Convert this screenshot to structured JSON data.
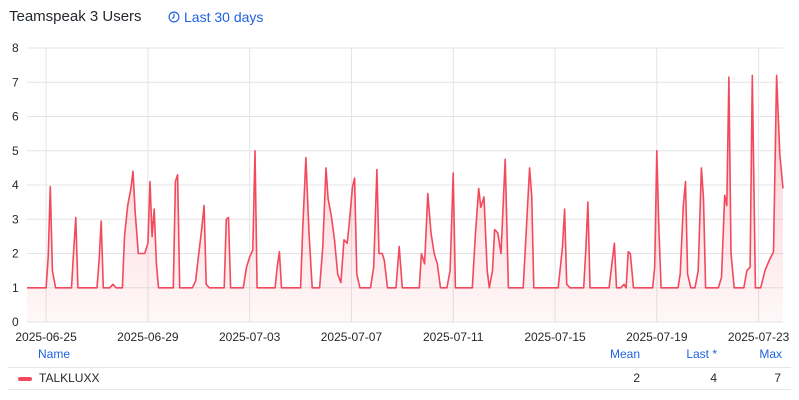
{
  "panel": {
    "title": "Teamspeak 3 Users",
    "time_range": "Last 30 days",
    "time_range_icon": "clock-icon"
  },
  "legend": {
    "headers": {
      "name": "Name",
      "mean": "Mean",
      "last": "Last *",
      "max": "Max"
    },
    "rows": [
      {
        "name": "TALKLUXX",
        "mean": "2",
        "last": "4",
        "max": "7",
        "color": "#f2495c"
      }
    ]
  },
  "chart_data": {
    "type": "area",
    "x_ticks": [
      "2025-06-25",
      "2025-06-29",
      "2025-07-03",
      "2025-07-07",
      "2025-07-11",
      "2025-07-15",
      "2025-07-19",
      "2025-07-23"
    ],
    "x_start": "2025-06-24T06:00",
    "x_end": "2025-07-23T23:00",
    "y_ticks": [
      0,
      1,
      2,
      3,
      4,
      5,
      6,
      7,
      8
    ],
    "ylim": [
      0,
      8
    ],
    "grid": true,
    "series": [
      {
        "name": "TALKLUXX",
        "color": "#f2495c",
        "points": [
          [
            "2025-06-24T06:00",
            1
          ],
          [
            "2025-06-24T12:00",
            1
          ],
          [
            "2025-06-24T18:00",
            1
          ],
          [
            "2025-06-25T00:00",
            1
          ],
          [
            "2025-06-25T02:00",
            1.9
          ],
          [
            "2025-06-25T04:00",
            3.95
          ],
          [
            "2025-06-25T06:00",
            1.5
          ],
          [
            "2025-06-25T09:00",
            1
          ],
          [
            "2025-06-25T18:00",
            1
          ],
          [
            "2025-06-26T00:00",
            1
          ],
          [
            "2025-06-26T02:00",
            2.1
          ],
          [
            "2025-06-26T04:00",
            3.05
          ],
          [
            "2025-06-26T06:00",
            1
          ],
          [
            "2025-06-26T12:00",
            1
          ],
          [
            "2025-06-26T18:00",
            1
          ],
          [
            "2025-06-27T00:00",
            1
          ],
          [
            "2025-06-27T02:00",
            1.8
          ],
          [
            "2025-06-27T04:00",
            2.95
          ],
          [
            "2025-06-27T06:00",
            1
          ],
          [
            "2025-06-27T12:00",
            1
          ],
          [
            "2025-06-27T15:00",
            1.1
          ],
          [
            "2025-06-27T18:00",
            1
          ],
          [
            "2025-06-28T00:00",
            1
          ],
          [
            "2025-06-28T02:00",
            2.5
          ],
          [
            "2025-06-28T05:00",
            3.4
          ],
          [
            "2025-06-28T08:00",
            3.9
          ],
          [
            "2025-06-28T10:00",
            4.4
          ],
          [
            "2025-06-28T12:00",
            3.2
          ],
          [
            "2025-06-28T15:00",
            2
          ],
          [
            "2025-06-28T18:00",
            2
          ],
          [
            "2025-06-28T21:00",
            2
          ],
          [
            "2025-06-29T00:00",
            2.3
          ],
          [
            "2025-06-29T02:00",
            4.1
          ],
          [
            "2025-06-29T04:00",
            2.5
          ],
          [
            "2025-06-29T06:00",
            3.3
          ],
          [
            "2025-06-29T08:00",
            1.7
          ],
          [
            "2025-06-29T10:00",
            1
          ],
          [
            "2025-06-29T18:00",
            1
          ],
          [
            "2025-06-30T00:00",
            1
          ],
          [
            "2025-06-30T02:00",
            4.1
          ],
          [
            "2025-06-30T04:00",
            4.3
          ],
          [
            "2025-06-30T06:00",
            1
          ],
          [
            "2025-06-30T12:00",
            1
          ],
          [
            "2025-06-30T18:00",
            1
          ],
          [
            "2025-06-30T21:00",
            1.2
          ],
          [
            "2025-07-01T00:00",
            2
          ],
          [
            "2025-07-01T03:00",
            2.8
          ],
          [
            "2025-07-01T05:00",
            3.4
          ],
          [
            "2025-07-01T07:00",
            1.1
          ],
          [
            "2025-07-01T10:00",
            1
          ],
          [
            "2025-07-01T18:00",
            1
          ],
          [
            "2025-07-02T00:00",
            1
          ],
          [
            "2025-07-02T02:00",
            3
          ],
          [
            "2025-07-02T04:00",
            3.05
          ],
          [
            "2025-07-02T06:00",
            1
          ],
          [
            "2025-07-02T12:00",
            1
          ],
          [
            "2025-07-02T18:00",
            1
          ],
          [
            "2025-07-02T21:00",
            1.6
          ],
          [
            "2025-07-03T00:00",
            1.9
          ],
          [
            "2025-07-03T03:00",
            2.1
          ],
          [
            "2025-07-03T05:00",
            5
          ],
          [
            "2025-07-03T07:00",
            1
          ],
          [
            "2025-07-03T12:00",
            1
          ],
          [
            "2025-07-03T18:00",
            1
          ],
          [
            "2025-07-04T00:00",
            1
          ],
          [
            "2025-07-04T02:00",
            1.6
          ],
          [
            "2025-07-04T04:00",
            2.05
          ],
          [
            "2025-07-04T06:00",
            1
          ],
          [
            "2025-07-04T12:00",
            1
          ],
          [
            "2025-07-04T18:00",
            1
          ],
          [
            "2025-07-05T00:00",
            1
          ],
          [
            "2025-07-05T02:00",
            2.7
          ],
          [
            "2025-07-05T05:00",
            4.8
          ],
          [
            "2025-07-05T08:00",
            2.6
          ],
          [
            "2025-07-05T11:00",
            1
          ],
          [
            "2025-07-05T18:00",
            1
          ],
          [
            "2025-07-05T21:00",
            2.2
          ],
          [
            "2025-07-06T00:00",
            4.5
          ],
          [
            "2025-07-06T02:00",
            3.6
          ],
          [
            "2025-07-06T05:00",
            3.1
          ],
          [
            "2025-07-06T08:00",
            2.4
          ],
          [
            "2025-07-06T11:00",
            1.4
          ],
          [
            "2025-07-06T14:00",
            1.15
          ],
          [
            "2025-07-06T17:00",
            2.4
          ],
          [
            "2025-07-06T20:00",
            2.3
          ],
          [
            "2025-07-06T22:00",
            2.9
          ],
          [
            "2025-07-07T01:00",
            3.95
          ],
          [
            "2025-07-07T03:00",
            4.2
          ],
          [
            "2025-07-07T05:00",
            1.4
          ],
          [
            "2025-07-07T08:00",
            1
          ],
          [
            "2025-07-07T14:00",
            1
          ],
          [
            "2025-07-07T18:00",
            1
          ],
          [
            "2025-07-07T21:00",
            1.6
          ],
          [
            "2025-07-08T00:00",
            4.45
          ],
          [
            "2025-07-08T02:00",
            2
          ],
          [
            "2025-07-08T05:00",
            2
          ],
          [
            "2025-07-08T07:00",
            1.8
          ],
          [
            "2025-07-08T10:00",
            1
          ],
          [
            "2025-07-08T14:00",
            1
          ],
          [
            "2025-07-08T18:00",
            1
          ],
          [
            "2025-07-08T21:00",
            2.2
          ],
          [
            "2025-07-09T00:00",
            1
          ],
          [
            "2025-07-09T06:00",
            1
          ],
          [
            "2025-07-09T12:00",
            1
          ],
          [
            "2025-07-09T16:00",
            1
          ],
          [
            "2025-07-09T18:00",
            2
          ],
          [
            "2025-07-09T21:00",
            1.7
          ],
          [
            "2025-07-10T00:00",
            3.75
          ],
          [
            "2025-07-10T03:00",
            2.6
          ],
          [
            "2025-07-10T06:00",
            2
          ],
          [
            "2025-07-10T09:00",
            1.7
          ],
          [
            "2025-07-10T12:00",
            1
          ],
          [
            "2025-07-10T18:00",
            1
          ],
          [
            "2025-07-10T21:00",
            1.5
          ],
          [
            "2025-07-11T00:00",
            4.35
          ],
          [
            "2025-07-11T02:00",
            1
          ],
          [
            "2025-07-11T08:00",
            1
          ],
          [
            "2025-07-11T14:00",
            1
          ],
          [
            "2025-07-11T18:00",
            1
          ],
          [
            "2025-07-11T21:00",
            2.6
          ],
          [
            "2025-07-12T00:00",
            3.9
          ],
          [
            "2025-07-12T02:00",
            3.35
          ],
          [
            "2025-07-12T05:00",
            3.65
          ],
          [
            "2025-07-12T08:00",
            1.5
          ],
          [
            "2025-07-12T10:00",
            1
          ],
          [
            "2025-07-12T13:00",
            1.5
          ],
          [
            "2025-07-12T15:00",
            2.7
          ],
          [
            "2025-07-12T18:00",
            2.6
          ],
          [
            "2025-07-12T21:00",
            2
          ],
          [
            "2025-07-13T01:00",
            4.75
          ],
          [
            "2025-07-13T04:00",
            1
          ],
          [
            "2025-07-13T10:00",
            1
          ],
          [
            "2025-07-13T18:00",
            1
          ],
          [
            "2025-07-14T00:00",
            4.5
          ],
          [
            "2025-07-14T02:00",
            3.7
          ],
          [
            "2025-07-14T04:00",
            1
          ],
          [
            "2025-07-14T10:00",
            1
          ],
          [
            "2025-07-14T18:00",
            1
          ],
          [
            "2025-07-15T00:00",
            1
          ],
          [
            "2025-07-15T03:00",
            1
          ],
          [
            "2025-07-15T07:00",
            2.2
          ],
          [
            "2025-07-15T09:00",
            3.3
          ],
          [
            "2025-07-15T11:00",
            1.1
          ],
          [
            "2025-07-15T14:00",
            1
          ],
          [
            "2025-07-15T20:00",
            1
          ],
          [
            "2025-07-16T00:00",
            1
          ],
          [
            "2025-07-16T03:00",
            1
          ],
          [
            "2025-07-16T05:00",
            2.1
          ],
          [
            "2025-07-16T07:00",
            3.5
          ],
          [
            "2025-07-16T09:00",
            1
          ],
          [
            "2025-07-16T14:00",
            1
          ],
          [
            "2025-07-16T20:00",
            1
          ],
          [
            "2025-07-17T00:00",
            1
          ],
          [
            "2025-07-17T03:00",
            1
          ],
          [
            "2025-07-17T06:00",
            1.8
          ],
          [
            "2025-07-17T08:00",
            2.3
          ],
          [
            "2025-07-17T10:00",
            1
          ],
          [
            "2025-07-17T14:00",
            1
          ],
          [
            "2025-07-17T17:00",
            1.1
          ],
          [
            "2025-07-17T19:00",
            1
          ],
          [
            "2025-07-17T21:00",
            2.05
          ],
          [
            "2025-07-17T23:00",
            2
          ],
          [
            "2025-07-18T02:00",
            1
          ],
          [
            "2025-07-18T08:00",
            1
          ],
          [
            "2025-07-18T14:00",
            1
          ],
          [
            "2025-07-18T20:00",
            1
          ],
          [
            "2025-07-18T22:00",
            1.6
          ],
          [
            "2025-07-19T00:00",
            5
          ],
          [
            "2025-07-19T02:00",
            2.7
          ],
          [
            "2025-07-19T04:00",
            1
          ],
          [
            "2025-07-19T10:00",
            1
          ],
          [
            "2025-07-19T16:00",
            1
          ],
          [
            "2025-07-19T20:00",
            1
          ],
          [
            "2025-07-19T22:00",
            1.4
          ],
          [
            "2025-07-20T01:00",
            3.4
          ],
          [
            "2025-07-20T03:00",
            4.1
          ],
          [
            "2025-07-20T05:00",
            1.4
          ],
          [
            "2025-07-20T08:00",
            1
          ],
          [
            "2025-07-20T12:00",
            1
          ],
          [
            "2025-07-20T15:00",
            1.5
          ],
          [
            "2025-07-20T18:00",
            4.5
          ],
          [
            "2025-07-20T20:00",
            3.6
          ],
          [
            "2025-07-20T22:00",
            1
          ],
          [
            "2025-07-21T04:00",
            1
          ],
          [
            "2025-07-21T10:00",
            1
          ],
          [
            "2025-07-21T13:00",
            1.3
          ],
          [
            "2025-07-21T16:00",
            3.7
          ],
          [
            "2025-07-21T18:00",
            3.4
          ],
          [
            "2025-07-21T20:00",
            7.15
          ],
          [
            "2025-07-21T22:00",
            2
          ],
          [
            "2025-07-22T01:00",
            1
          ],
          [
            "2025-07-22T07:00",
            1
          ],
          [
            "2025-07-22T10:00",
            1
          ],
          [
            "2025-07-22T13:00",
            1.5
          ],
          [
            "2025-07-22T16:00",
            1.6
          ],
          [
            "2025-07-22T18:00",
            7.2
          ],
          [
            "2025-07-22T21:00",
            1
          ],
          [
            "2025-07-23T02:00",
            1
          ],
          [
            "2025-07-23T06:00",
            1.5
          ],
          [
            "2025-07-23T10:00",
            1.8
          ],
          [
            "2025-07-23T14:00",
            2.05
          ],
          [
            "2025-07-23T17:00",
            7.2
          ],
          [
            "2025-07-23T20:00",
            4.9
          ],
          [
            "2025-07-23T23:00",
            3.9
          ]
        ]
      }
    ]
  }
}
